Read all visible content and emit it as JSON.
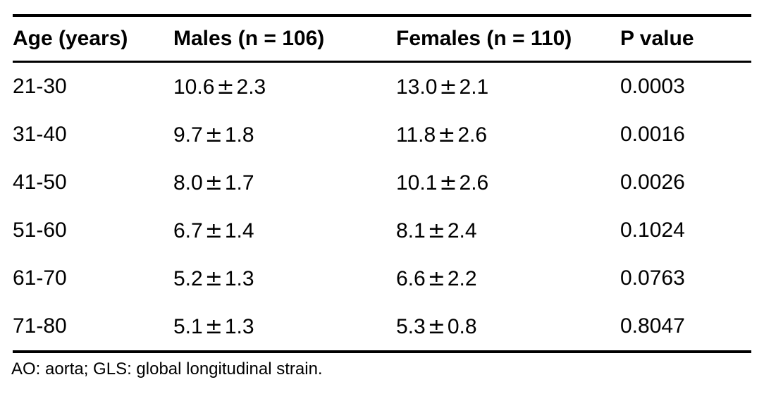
{
  "symbols": {
    "plus_minus": "±"
  },
  "table": {
    "columns": [
      {
        "label": "Age (years)"
      },
      {
        "label": "Males (n = 106)"
      },
      {
        "label": "Females (n = 110)"
      },
      {
        "label": "P value"
      }
    ],
    "rows": [
      {
        "age": "21-30",
        "males": {
          "mean": "10.6",
          "sd": "2.3"
        },
        "females": {
          "mean": "13.0",
          "sd": "2.1"
        },
        "p": "0.0003"
      },
      {
        "age": "31-40",
        "males": {
          "mean": "9.7",
          "sd": "1.8"
        },
        "females": {
          "mean": "11.8",
          "sd": "2.6"
        },
        "p": "0.0016"
      },
      {
        "age": "41-50",
        "males": {
          "mean": "8.0",
          "sd": "1.7"
        },
        "females": {
          "mean": "10.1",
          "sd": "2.6"
        },
        "p": "0.0026"
      },
      {
        "age": "51-60",
        "males": {
          "mean": "6.7",
          "sd": "1.4"
        },
        "females": {
          "mean": "8.1",
          "sd": "2.4"
        },
        "p": "0.1024"
      },
      {
        "age": "61-70",
        "males": {
          "mean": "5.2",
          "sd": "1.3"
        },
        "females": {
          "mean": "6.6",
          "sd": "2.2"
        },
        "p": "0.0763"
      },
      {
        "age": "71-80",
        "males": {
          "mean": "5.1",
          "sd": "1.3"
        },
        "females": {
          "mean": "5.3",
          "sd": "0.8"
        },
        "p": "0.8047"
      }
    ],
    "footnote": "AO: aorta; GLS: global longitudinal strain."
  }
}
